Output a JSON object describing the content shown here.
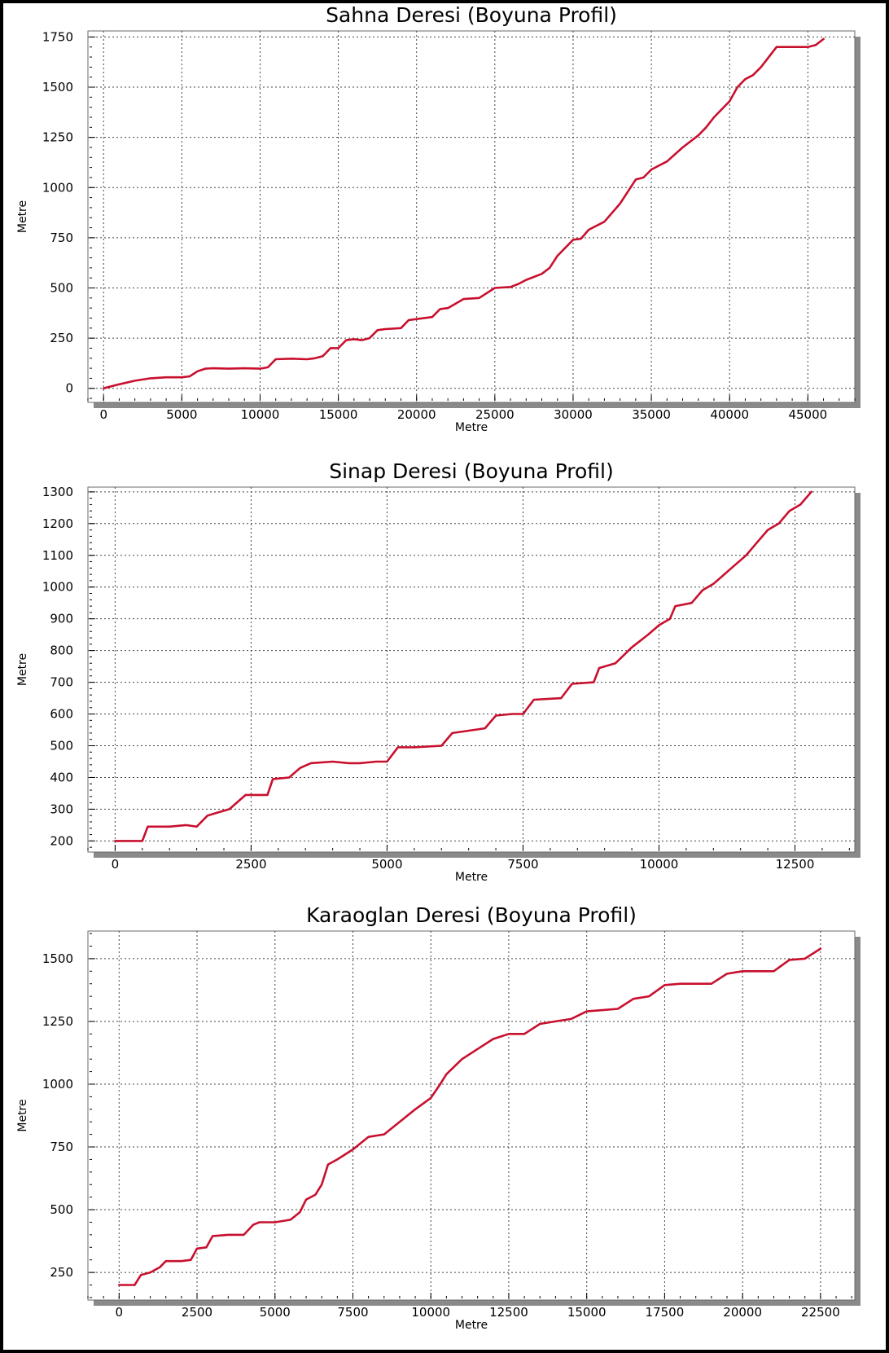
{
  "colors": {
    "series": "#c8102e",
    "grid": "#444444",
    "shadow": "#8a8a8a"
  },
  "chart_data": [
    {
      "type": "line",
      "title": "Sahna Deresi (Boyuna Profil)",
      "xlabel": "Metre",
      "ylabel": "Metre",
      "xlim": [
        -1000,
        48000
      ],
      "ylim": [
        -70,
        1780
      ],
      "xticks": [
        "0",
        "5000",
        "10000",
        "15000",
        "20000",
        "25000",
        "30000",
        "35000",
        "40000",
        "45000"
      ],
      "yticks": [
        "0",
        "250",
        "500",
        "750",
        "1000",
        "1250",
        "1500",
        "1750"
      ],
      "grid": true,
      "series": [
        {
          "x": [
            0,
            1000,
            2000,
            3000,
            4000,
            5000,
            5500,
            6000,
            6500,
            7000,
            8000,
            9000,
            10000,
            10500,
            11000,
            12000,
            13000,
            13500,
            14000,
            14500,
            15000,
            15500,
            16000,
            16500,
            17000,
            17500,
            18000,
            19000,
            19500,
            20000,
            21000,
            21500,
            22000,
            23000,
            24000,
            25000,
            26000,
            26500,
            27000,
            28000,
            28500,
            29000,
            30000,
            30500,
            31000,
            32000,
            33000,
            34000,
            34500,
            35000,
            36000,
            37000,
            38000,
            38500,
            39000,
            40000,
            40500,
            41000,
            41500,
            42000,
            43000,
            44000,
            45000,
            45500,
            46000
          ],
          "y": [
            0,
            20,
            38,
            50,
            55,
            55,
            60,
            85,
            98,
            100,
            98,
            100,
            98,
            105,
            145,
            148,
            145,
            150,
            160,
            200,
            200,
            240,
            245,
            240,
            250,
            290,
            295,
            300,
            340,
            345,
            355,
            395,
            400,
            445,
            450,
            500,
            505,
            520,
            540,
            570,
            600,
            660,
            740,
            745,
            790,
            830,
            920,
            1040,
            1050,
            1090,
            1130,
            1200,
            1260,
            1300,
            1350,
            1430,
            1500,
            1540,
            1560,
            1600,
            1700,
            1700,
            1700,
            1710,
            1740
          ]
        }
      ]
    },
    {
      "type": "line",
      "title": "Sinap Deresi (Boyuna Profil)",
      "xlabel": "Metre",
      "ylabel": "Metre",
      "xlim": [
        -500,
        13600
      ],
      "ylim": [
        165,
        1315
      ],
      "xticks": [
        "0",
        "2500",
        "5000",
        "7500",
        "10000",
        "12500"
      ],
      "yticks": [
        "200",
        "300",
        "400",
        "500",
        "600",
        "700",
        "800",
        "900",
        "1000",
        "1100",
        "1200",
        "1300"
      ],
      "grid": true,
      "series": [
        {
          "x": [
            0,
            300,
            500,
            600,
            1000,
            1300,
            1500,
            1700,
            1900,
            2100,
            2400,
            2800,
            2900,
            3200,
            3400,
            3600,
            4000,
            4300,
            4500,
            4800,
            5000,
            5200,
            5500,
            6000,
            6200,
            6400,
            6800,
            7000,
            7300,
            7500,
            7700,
            8200,
            8400,
            8800,
            8900,
            9200,
            9500,
            9800,
            10000,
            10200,
            10300,
            10600,
            10800,
            11000,
            11200,
            11300,
            11600,
            11800,
            12000,
            12200,
            12400,
            12600,
            12800
          ],
          "y": [
            200,
            200,
            200,
            245,
            245,
            250,
            245,
            280,
            290,
            300,
            345,
            345,
            395,
            400,
            430,
            445,
            450,
            445,
            445,
            450,
            450,
            495,
            495,
            500,
            540,
            545,
            555,
            595,
            600,
            600,
            645,
            650,
            695,
            700,
            745,
            760,
            810,
            850,
            880,
            900,
            940,
            950,
            990,
            1010,
            1040,
            1055,
            1100,
            1140,
            1180,
            1200,
            1240,
            1260,
            1300
          ]
        }
      ]
    },
    {
      "type": "line",
      "title": "Karaoglan Deresi (Boyuna Profil)",
      "xlabel": "Metre",
      "ylabel": "Metre",
      "xlim": [
        -1000,
        23600
      ],
      "ylim": [
        140,
        1610
      ],
      "xticks": [
        "0",
        "2500",
        "5000",
        "7500",
        "10000",
        "12500",
        "15000",
        "17500",
        "20000",
        "22500"
      ],
      "yticks": [
        "250",
        "500",
        "750",
        "1000",
        "1250",
        "1500"
      ],
      "grid": true,
      "series": [
        {
          "x": [
            0,
            300,
            500,
            700,
            1000,
            1300,
            1500,
            2000,
            2300,
            2500,
            2800,
            3000,
            3500,
            4000,
            4300,
            4500,
            5000,
            5500,
            5800,
            6000,
            6300,
            6500,
            6700,
            7000,
            7500,
            8000,
            8500,
            9000,
            9500,
            10000,
            10300,
            10500,
            11000,
            11500,
            12000,
            12500,
            13000,
            13500,
            14000,
            14500,
            15000,
            15500,
            16000,
            16500,
            17000,
            17500,
            18000,
            18500,
            19000,
            19500,
            20000,
            20500,
            21000,
            21500,
            22000,
            22500
          ],
          "y": [
            200,
            200,
            200,
            240,
            250,
            270,
            295,
            295,
            300,
            345,
            350,
            395,
            400,
            400,
            440,
            450,
            450,
            460,
            490,
            540,
            560,
            600,
            680,
            700,
            740,
            790,
            800,
            850,
            900,
            945,
            1000,
            1040,
            1100,
            1140,
            1180,
            1200,
            1200,
            1240,
            1250,
            1260,
            1290,
            1295,
            1300,
            1340,
            1350,
            1395,
            1400,
            1400,
            1400,
            1440,
            1450,
            1450,
            1450,
            1495,
            1500,
            1540
          ]
        }
      ]
    }
  ]
}
